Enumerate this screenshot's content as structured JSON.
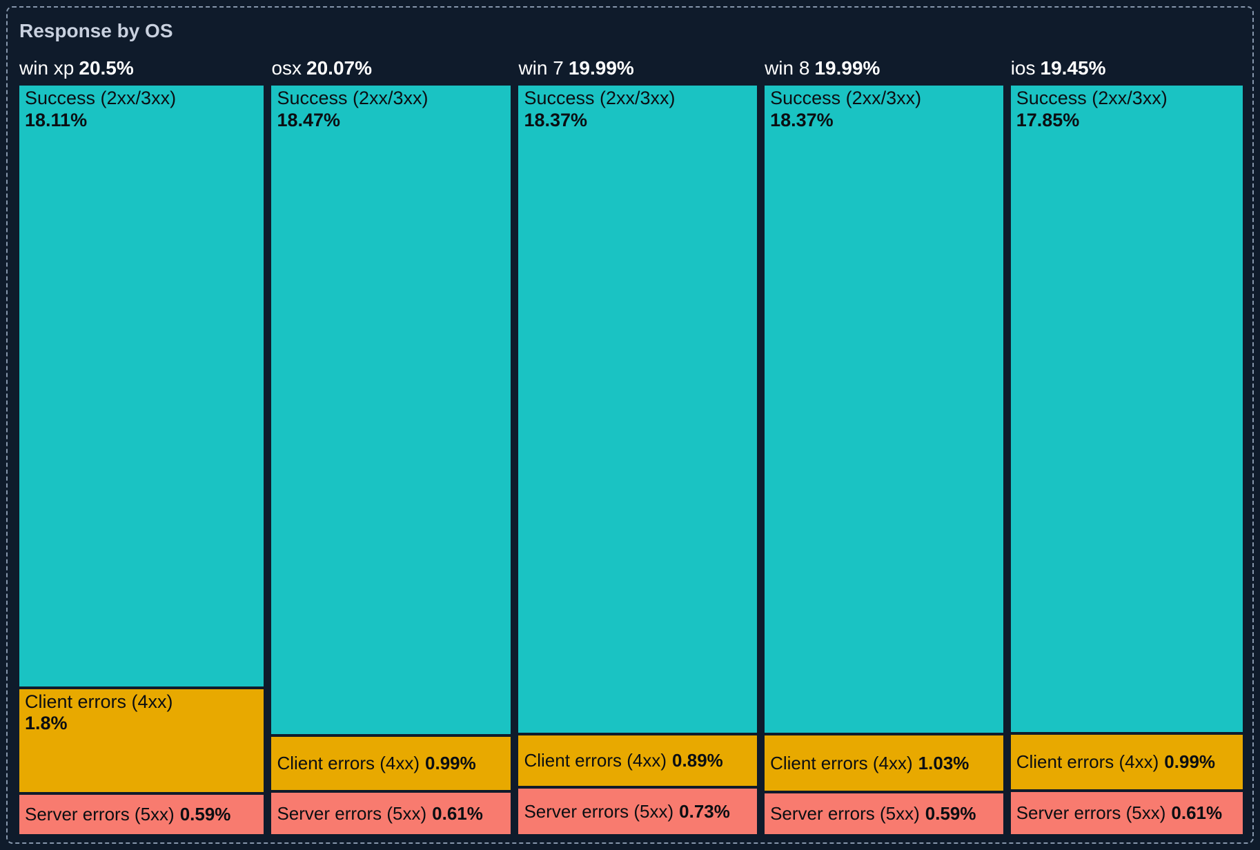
{
  "panel": {
    "title": "Response by OS"
  },
  "chart_data": {
    "type": "treemap",
    "title": "Response by OS",
    "layout_hints": {
      "orientation": "vertical-columns",
      "column_width_proportional_to": "group total",
      "segment_height_proportional_to": "segment value",
      "legend": "none",
      "value_format": "percent"
    },
    "colors": {
      "success": "#1AC3C3",
      "client_errors": "#E8A900",
      "server_errors": "#F87B6F",
      "background": "#0F1B2B",
      "panel_border": "#8797AC",
      "title_text": "#C9D1DF",
      "header_text": "#FFFFFF",
      "segment_text": "#0B0E12"
    },
    "series_order": [
      "success",
      "client_errors",
      "server_errors"
    ],
    "groups": [
      {
        "name": "win xp",
        "total": 20.5,
        "total_display": "20.5%",
        "segments": [
          {
            "label": "Success (2xx/3xx)",
            "value": 18.11,
            "display": "18.11%"
          },
          {
            "label": "Client errors (4xx)",
            "value": 1.8,
            "display": "1.8%"
          },
          {
            "label": "Server errors (5xx)",
            "value": 0.59,
            "display": "0.59%"
          }
        ]
      },
      {
        "name": "osx",
        "total": 20.07,
        "total_display": "20.07%",
        "segments": [
          {
            "label": "Success (2xx/3xx)",
            "value": 18.47,
            "display": "18.47%"
          },
          {
            "label": "Client errors (4xx)",
            "value": 0.99,
            "display": "0.99%"
          },
          {
            "label": "Server errors (5xx)",
            "value": 0.61,
            "display": "0.61%"
          }
        ]
      },
      {
        "name": "win 7",
        "total": 19.99,
        "total_display": "19.99%",
        "segments": [
          {
            "label": "Success (2xx/3xx)",
            "value": 18.37,
            "display": "18.37%"
          },
          {
            "label": "Client errors (4xx)",
            "value": 0.89,
            "display": "0.89%"
          },
          {
            "label": "Server errors (5xx)",
            "value": 0.73,
            "display": "0.73%"
          }
        ]
      },
      {
        "name": "win 8",
        "total": 19.99,
        "total_display": "19.99%",
        "segments": [
          {
            "label": "Success (2xx/3xx)",
            "value": 18.37,
            "display": "18.37%"
          },
          {
            "label": "Client errors (4xx)",
            "value": 1.03,
            "display": "1.03%"
          },
          {
            "label": "Server errors (5xx)",
            "value": 0.59,
            "display": "0.59%"
          }
        ]
      },
      {
        "name": "ios",
        "total": 19.45,
        "total_display": "19.45%",
        "segments": [
          {
            "label": "Success (2xx/3xx)",
            "value": 17.85,
            "display": "17.85%"
          },
          {
            "label": "Client errors (4xx)",
            "value": 0.99,
            "display": "0.99%"
          },
          {
            "label": "Server errors (5xx)",
            "value": 0.61,
            "display": "0.61%"
          }
        ]
      }
    ]
  }
}
